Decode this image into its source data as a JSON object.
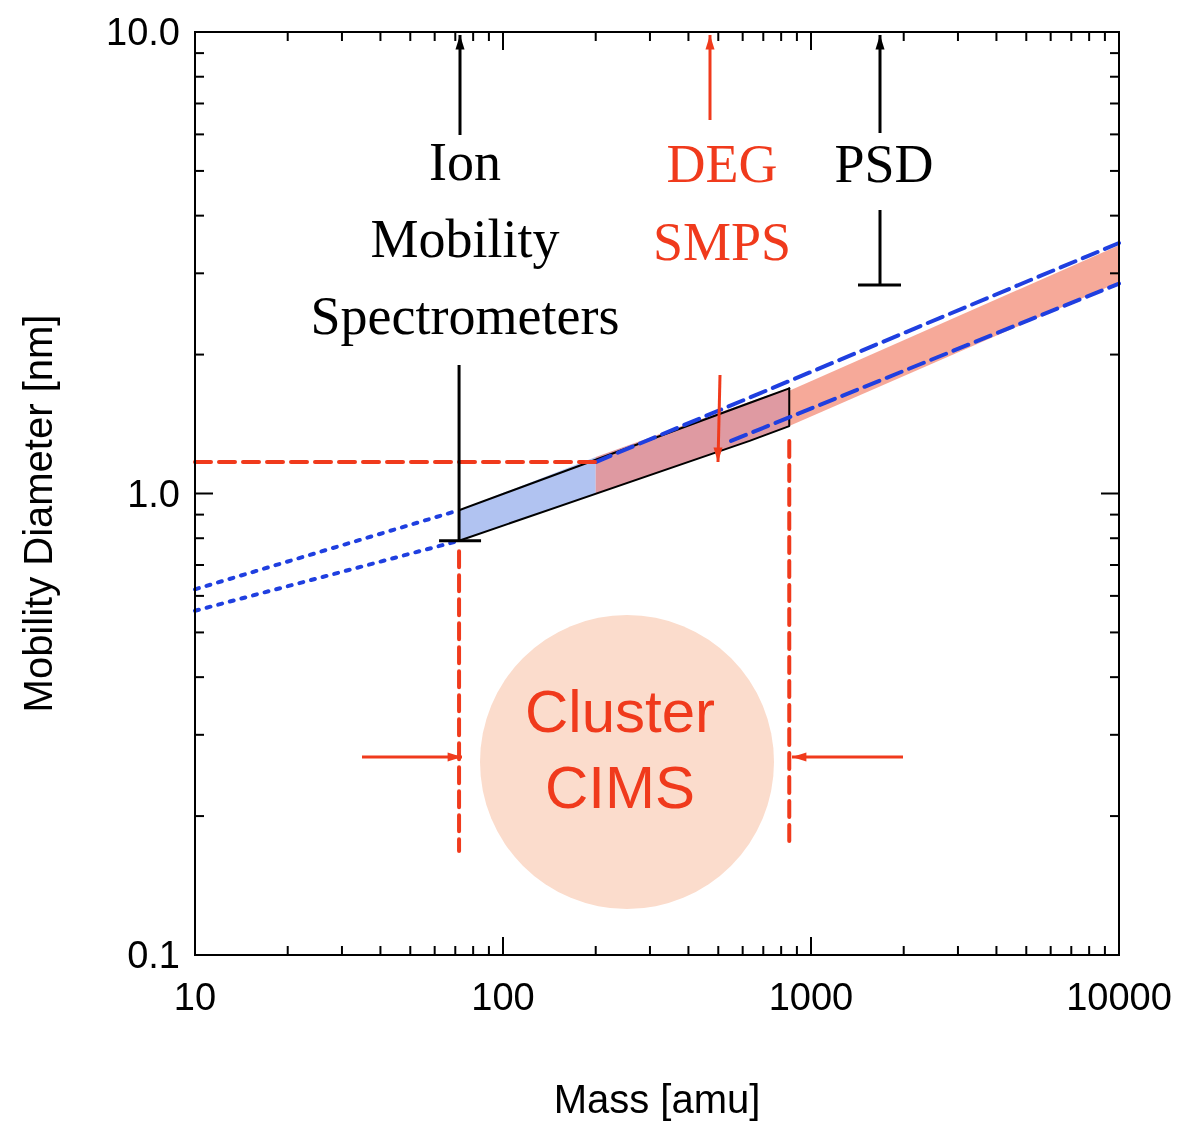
{
  "chart_data": {
    "type": "line",
    "xlabel": "Mass [amu]",
    "ylabel": "Mobility Diameter [nm]",
    "log": "xy",
    "xlim": [
      10,
      10000
    ],
    "ylim": [
      0.1,
      10
    ],
    "xticks": [
      10,
      {
        "value": 20,
        "label": null
      },
      {
        "value": 30,
        "label": null
      },
      {
        "value": 40,
        "label": null
      },
      {
        "value": 50,
        "label": null
      },
      {
        "value": 60,
        "label": null
      },
      {
        "value": 70,
        "label": null
      },
      {
        "value": 80,
        "label": null
      },
      {
        "value": 90,
        "label": null
      },
      100,
      {
        "value": 200,
        "label": null
      },
      {
        "value": 300,
        "label": null
      },
      {
        "value": 400,
        "label": null
      },
      {
        "value": 500,
        "label": null
      },
      {
        "value": 600,
        "label": null
      },
      {
        "value": 700,
        "label": null
      },
      {
        "value": 800,
        "label": null
      },
      {
        "value": 900,
        "label": null
      },
      1000,
      {
        "value": 2000,
        "label": null
      },
      {
        "value": 3000,
        "label": null
      },
      {
        "value": 4000,
        "label": null
      },
      {
        "value": 5000,
        "label": null
      },
      {
        "value": 6000,
        "label": null
      },
      {
        "value": 7000,
        "label": null
      },
      {
        "value": 8000,
        "label": null
      },
      {
        "value": 9000,
        "label": null
      },
      10000
    ],
    "yticks": [
      0.1,
      {
        "value": 0.2,
        "label": null
      },
      {
        "value": 0.3,
        "label": null
      },
      {
        "value": 0.4,
        "label": null
      },
      {
        "value": 0.5,
        "label": null
      },
      {
        "value": 0.6,
        "label": null
      },
      {
        "value": 0.7,
        "label": null
      },
      {
        "value": 0.8,
        "label": null
      },
      {
        "value": 0.9,
        "label": null
      },
      {
        "value": 1,
        "label": "1.0"
      },
      {
        "value": 2,
        "label": null
      },
      {
        "value": 3,
        "label": null
      },
      {
        "value": 4,
        "label": null
      },
      {
        "value": 5,
        "label": null
      },
      {
        "value": 6,
        "label": null
      },
      {
        "value": 7,
        "label": null
      },
      {
        "value": 8,
        "label": null
      },
      {
        "value": 9,
        "label": null
      },
      {
        "value": 10,
        "label": "10.0"
      }
    ],
    "grid": false,
    "series": [
      {
        "type": "area",
        "color": "#f5a08e",
        "x": [
          850,
          10000
        ],
        "lower": [
          1.4,
          2.87
        ],
        "upper": [
          1.67,
          3.45
        ],
        "values": [
          null,
          null
        ]
      },
      {
        "type": "area",
        "color": "#a9bdf0",
        "x": [
          72,
          200
        ],
        "lower": [
          0.79,
          1.0
        ],
        "upper": [
          0.92,
          1.2
        ],
        "values": [
          null,
          null
        ]
      },
      {
        "type": "area",
        "color": "#dc8f98",
        "x": [
          200,
          632,
          850
        ],
        "lower": [
          1.0,
          1.3,
          1.4
        ],
        "upper": [
          1.2,
          1.58,
          1.69
        ],
        "values": [
          null,
          null,
          null
        ]
      },
      {
        "color": "#000000",
        "line_style": "solid",
        "x": [
          72,
          850
        ],
        "values": [
          0.92,
          1.69
        ]
      },
      {
        "color": "#000000",
        "line_style": "solid",
        "x": [
          72,
          632,
          850,
          850
        ],
        "values": [
          0.79,
          1.3,
          1.4,
          1.69
        ]
      },
      {
        "color": "#1f3fe0",
        "line_style": "dotted",
        "x": [
          10,
          72
        ],
        "values": [
          0.62,
          0.92
        ]
      },
      {
        "color": "#1f3fe0",
        "line_style": "dotted",
        "x": [
          10,
          72
        ],
        "values": [
          0.557,
          0.79
        ]
      },
      {
        "color": "#1f3fe0",
        "line_style": "dashed",
        "x": [
          200,
          10000
        ],
        "values": [
          1.17,
          3.49
        ]
      },
      {
        "color": "#1f3fe0",
        "line_style": "dashed",
        "x": [
          550,
          10000
        ],
        "values": [
          1.3,
          2.85
        ]
      },
      {
        "color": "#f03a1c",
        "line_style": "dashed",
        "x": [
          10,
          200
        ],
        "values": [
          1.17,
          1.17
        ]
      },
      {
        "color": "#f03a1c",
        "line_style": "dashed",
        "x": [
          72,
          72
        ],
        "values": [
          0.75,
          0.168
        ]
      },
      {
        "color": "#f03a1c",
        "line_style": "dashed",
        "x": [
          850,
          850
        ],
        "values": [
          1.3,
          0.172
        ]
      }
    ],
    "annotations": [
      {
        "text": "Ion Mobility Spectrometers",
        "x": 72,
        "y": 0.79
      },
      "DEG SMPS",
      "PSD",
      "Cluster CIMS"
    ]
  }
}
